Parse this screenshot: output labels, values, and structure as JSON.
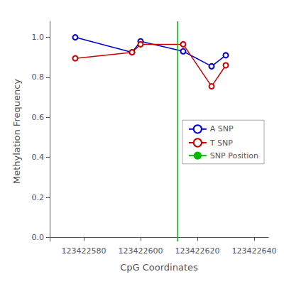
{
  "chart_data": {
    "type": "line",
    "x_label": "CpG Coordinates",
    "y_label": "Methylation Frequency",
    "series": [
      {
        "name": "A SNP",
        "color": "#0000cc",
        "marker": "open_circle",
        "x": [
          123422577,
          123422597,
          123422600,
          123422615,
          123422625,
          123422630
        ],
        "values": [
          1.0,
          0.925,
          0.98,
          0.93,
          0.855,
          0.91
        ]
      },
      {
        "name": "T SNP",
        "color": "#cc0000",
        "marker": "open_circle",
        "x": [
          123422577,
          123422597,
          123422600,
          123422615,
          123422625,
          123422630
        ],
        "values": [
          0.895,
          0.925,
          0.965,
          0.965,
          0.755,
          0.86
        ]
      }
    ],
    "vertical_line": {
      "name": "SNP Position",
      "x": 123422613,
      "color": "#00bb00"
    },
    "xlim": [
      123422568,
      123422645
    ],
    "ylim": [
      -0.02,
      1.08
    ],
    "xticks": [
      123422580,
      123422600,
      123422620,
      123422640
    ],
    "yticks": [
      {
        "value": 0.0,
        "label": "0.0"
      },
      0.2,
      0.4,
      0.6,
      0.8,
      {
        "value": 1.0,
        "label": "1.0"
      }
    ],
    "grid": false,
    "legend": "right"
  }
}
